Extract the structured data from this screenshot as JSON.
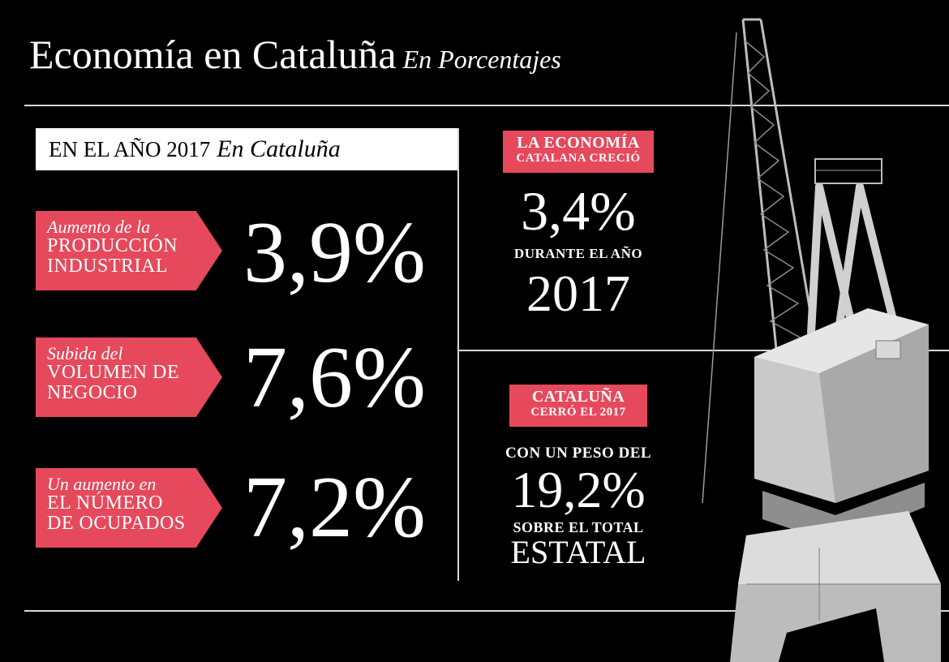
{
  "header": {
    "title": "Economía en Cataluña",
    "subtitle": "En Porcentajes"
  },
  "year_box": {
    "label": "EN EL AÑO 2017",
    "label_italic": "En Cataluña"
  },
  "stats": [
    {
      "italic": "Aumento de la",
      "line1": "PRODUCCIÓN",
      "line2": "INDUSTRIAL",
      "value": "3,9%"
    },
    {
      "italic": "Subida del",
      "line1": "VOLUMEN DE",
      "line2": "NEGOCIO",
      "value": "7,6%"
    },
    {
      "italic": "Un aumento en",
      "line1": "EL NÚMERO",
      "line2": "DE OCUPADOS",
      "value": "7,2%"
    }
  ],
  "right_top": {
    "tag_line1": "LA ECONOMÍA",
    "tag_line2": "CATALANA CRECIÓ",
    "value": "3,4%",
    "caption": "DURANTE EL AÑO",
    "year": "2017"
  },
  "right_bottom": {
    "tag_line1": "CATALUÑA",
    "tag_line2": "CERRÓ EL 2017",
    "caption_top": "CON UN PESO DEL",
    "value": "19,2%",
    "caption_bottom": "SOBRE EL TOTAL",
    "caption_last": "ESTATAL"
  },
  "colors": {
    "accent": "#e5495b",
    "background": "#000000",
    "lines": "#d8d8d8"
  }
}
